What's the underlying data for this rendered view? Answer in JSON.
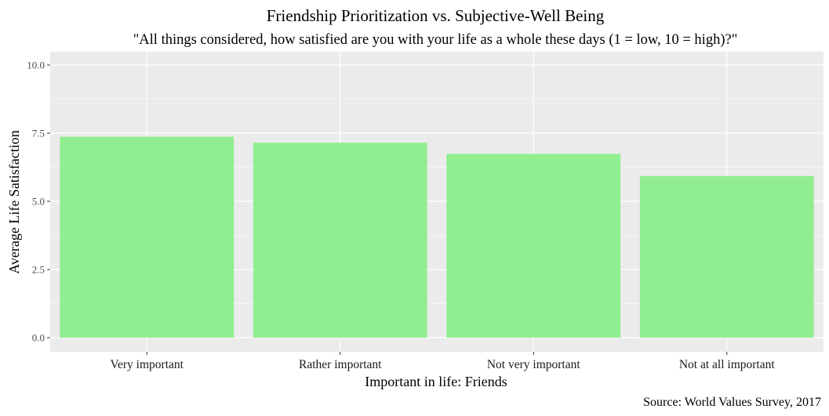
{
  "chart_data": {
    "type": "bar",
    "title": "Friendship Prioritization vs. Subjective-Well Being",
    "subtitle": "\"All things considered, how satisfied are you with your life as a whole these days (1 = low, 10 = high)?\"",
    "xlabel": "Important in life: Friends",
    "ylabel": "Average Life Satisfaction",
    "caption": "Source: World Values Survey, 2017",
    "categories": [
      "Very important",
      "Rather important",
      "Not very important",
      "Not at all important"
    ],
    "values": [
      7.37,
      7.15,
      6.74,
      5.93
    ],
    "ylim": [
      0,
      10
    ],
    "yticks": [
      0,
      2.5,
      5,
      7.5,
      10
    ],
    "ytick_labels": [
      "0.0",
      "2.5",
      "5.0",
      "7.5",
      "10.0"
    ],
    "bar_color": "#90ee90",
    "panel_background": "#ebebeb",
    "grid_color": "#ffffff",
    "grid": true,
    "legend": "none"
  }
}
